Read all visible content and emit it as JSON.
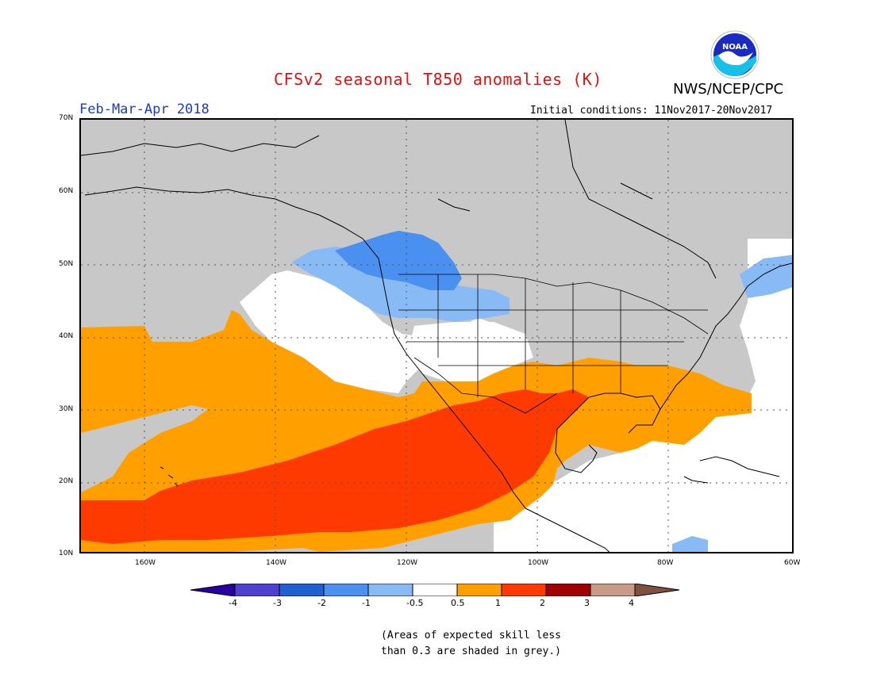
{
  "title": "CFSv2 seasonal T850 anomalies (K)",
  "agency": "NWS/NCEP/CPC",
  "logo_text": "NOAA",
  "period": "Feb-Mar-Apr 2018",
  "initial_conditions": "Initial conditions: 11Nov2017-20Nov2017",
  "lat_labels": [
    "70N",
    "60N",
    "50N",
    "40N",
    "30N",
    "20N",
    "10N"
  ],
  "lon_labels": [
    "160W",
    "140W",
    "120W",
    "100W",
    "80W",
    "60W"
  ],
  "colorbar": {
    "colors": [
      "#2800a0",
      "#5040d0",
      "#2060d0",
      "#4a90f0",
      "#88bbf5",
      "#ffffff",
      "#ffa000",
      "#ff3a00",
      "#a00000",
      "#c89a88",
      "#805040"
    ],
    "labels": [
      "-4",
      "-3",
      "-2",
      "-1",
      "-0.5",
      "0.5",
      "1",
      "2",
      "3",
      "4"
    ]
  },
  "note_line1": "(Areas of expected skill less",
  "note_line2": "than 0.3 are shaded in grey.)",
  "colors": {
    "skill_grey": "#c8c8c8",
    "warm_orange": "#ffa000",
    "warm_red": "#ff3a00",
    "cool_light_blue": "#88bbf5",
    "cool_blue": "#4a90f0",
    "title_red": "#e01010",
    "period_blue": "#1a3cc8"
  }
}
